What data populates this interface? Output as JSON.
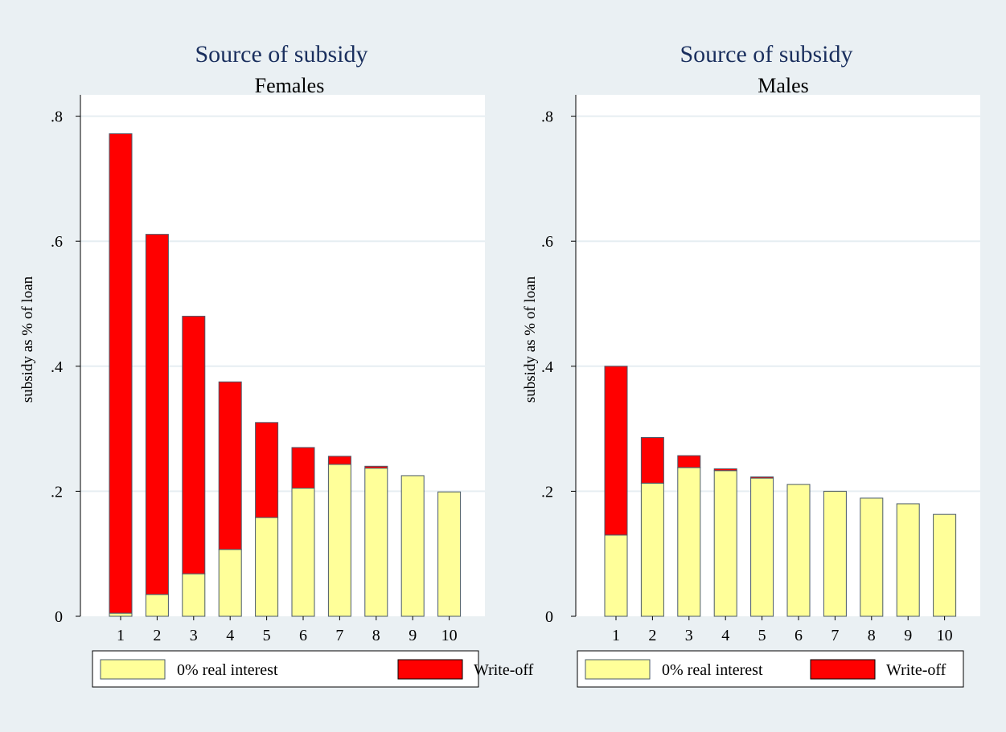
{
  "colors": {
    "background": "#eaf0f3",
    "plot_area": "#ffffff",
    "gridline": "#e6eef2",
    "interest_fill": "#ffff99",
    "writeoff_fill": "#ff0000",
    "bar_stroke": "#4a5a6a",
    "title": "#1a2f5e",
    "text": "#000000"
  },
  "chart_data": [
    {
      "type": "bar",
      "stacked": true,
      "title": "Source of subsidy",
      "subtitle": "Females",
      "xlabel": "",
      "ylabel": "subsidy as % of loan",
      "ylim": [
        0,
        0.8
      ],
      "yticks": [
        0,
        0.2,
        0.4,
        0.6,
        0.8
      ],
      "ytick_labels": [
        "0",
        ".2",
        ".4",
        ".6",
        ".8"
      ],
      "grid": true,
      "legend_position": "bottom",
      "categories": [
        "1",
        "2",
        "3",
        "4",
        "5",
        "6",
        "7",
        "8",
        "9",
        "10"
      ],
      "series": [
        {
          "name": "0% real interest",
          "color": "interest",
          "values": [
            0.005,
            0.035,
            0.068,
            0.107,
            0.158,
            0.205,
            0.243,
            0.237,
            0.225,
            0.199
          ]
        },
        {
          "name": "Write-off",
          "color": "writeoff",
          "values": [
            0.767,
            0.576,
            0.412,
            0.268,
            0.152,
            0.065,
            0.013,
            0.003,
            0.0,
            0.0
          ]
        }
      ]
    },
    {
      "type": "bar",
      "stacked": true,
      "title": "Source of subsidy",
      "subtitle": "Males",
      "xlabel": "",
      "ylabel": "subsidy as % of loan",
      "ylim": [
        0,
        0.8
      ],
      "yticks": [
        0,
        0.2,
        0.4,
        0.6,
        0.8
      ],
      "ytick_labels": [
        "0",
        ".2",
        ".4",
        ".6",
        ".8"
      ],
      "grid": true,
      "legend_position": "bottom",
      "categories": [
        "1",
        "2",
        "3",
        "4",
        "5",
        "6",
        "7",
        "8",
        "9",
        "10"
      ],
      "series": [
        {
          "name": "0% real interest",
          "color": "interest",
          "values": [
            0.13,
            0.213,
            0.238,
            0.233,
            0.221,
            0.211,
            0.2,
            0.189,
            0.18,
            0.163
          ]
        },
        {
          "name": "Write-off",
          "color": "writeoff",
          "values": [
            0.27,
            0.073,
            0.019,
            0.003,
            0.002,
            0.0,
            0.0,
            0.0,
            0.0,
            0.0
          ]
        }
      ]
    }
  ]
}
